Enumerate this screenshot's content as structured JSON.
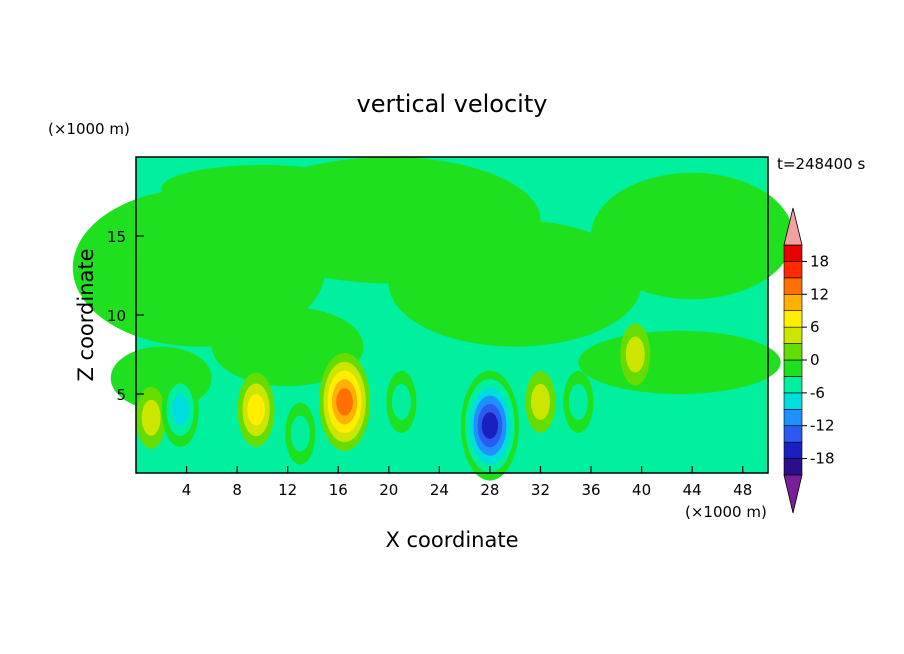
{
  "chart_data": {
    "type": "heatmap",
    "title": "vertical velocity",
    "xlabel": "X coordinate",
    "ylabel": "Z coordinate",
    "x_unit": "(×1000 m)",
    "y_unit": "(×1000 m)",
    "time_label": "t=248400 s",
    "xlim": [
      0,
      50
    ],
    "ylim": [
      0,
      20
    ],
    "x_ticks": [
      4,
      8,
      12,
      16,
      20,
      24,
      28,
      32,
      36,
      40,
      44,
      48
    ],
    "y_ticks": [
      5,
      10,
      15
    ],
    "colorbar": {
      "levels": [
        -21,
        -18,
        -15,
        -12,
        -9,
        -6,
        -3,
        0,
        3,
        6,
        9,
        12,
        15,
        18,
        21
      ],
      "tick_labels": [
        "18",
        "12",
        "6",
        "0",
        "-6",
        "-12",
        "-18"
      ],
      "tick_values": [
        18,
        12,
        6,
        0,
        -6,
        -12,
        -18
      ],
      "colors": [
        "#7a1e9c",
        "#2a0f8a",
        "#1a20c0",
        "#2a5af0",
        "#1e90ff",
        "#00dddd",
        "#00f0a0",
        "#1ee01e",
        "#66dd00",
        "#cce600",
        "#ffee00",
        "#ffb000",
        "#ff7000",
        "#ff2a00",
        "#e80000",
        "#f4a0a0"
      ],
      "extend": "both"
    },
    "features": [
      {
        "kind": "updraft",
        "x": 9.5,
        "z": 4.0,
        "peak": 7
      },
      {
        "kind": "updraft",
        "x": 16.5,
        "z": 4.5,
        "peak": 13
      },
      {
        "kind": "updraft",
        "x": 32,
        "z": 4.5,
        "peak": 6
      },
      {
        "kind": "updraft",
        "x": 39.5,
        "z": 7.5,
        "peak": 4
      },
      {
        "kind": "updraft",
        "x": 1.2,
        "z": 3.5,
        "peak": 4
      },
      {
        "kind": "downdraft",
        "x": 3.5,
        "z": 4.0,
        "peak": -9
      },
      {
        "kind": "downdraft",
        "x": 13,
        "z": 2.5,
        "peak": -4
      },
      {
        "kind": "downdraft",
        "x": 28,
        "z": 3.0,
        "peak": -16
      },
      {
        "kind": "downdraft",
        "x": 21,
        "z": 4.5,
        "peak": -6
      },
      {
        "kind": "downdraft",
        "x": 35,
        "z": 4.5,
        "peak": -5
      }
    ]
  }
}
